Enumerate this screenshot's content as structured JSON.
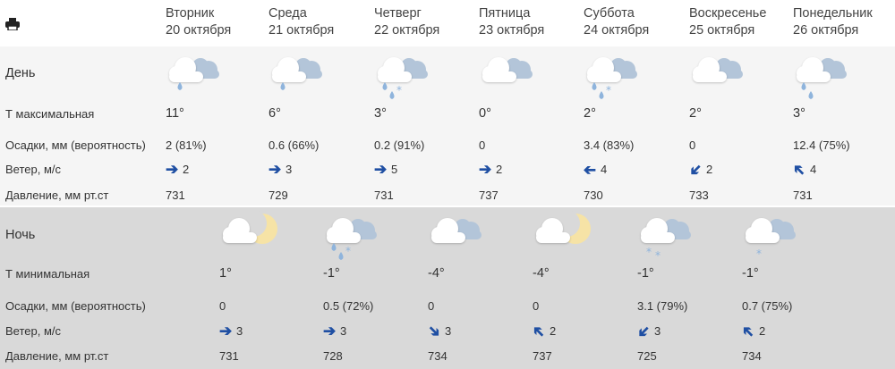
{
  "print_icon": "printer-icon",
  "colors": {
    "wind_arrow": "#1f4fa3",
    "day_bg": "#f5f5f5",
    "night_bg": "#d9d9d9",
    "drop": "#8fb4dc",
    "moon": "#f6e3a6"
  },
  "days": [
    {
      "weekday": "Вторник",
      "date": "20 октября"
    },
    {
      "weekday": "Среда",
      "date": "21 октября"
    },
    {
      "weekday": "Четверг",
      "date": "22 октября"
    },
    {
      "weekday": "Пятница",
      "date": "23 октября"
    },
    {
      "weekday": "Суббота",
      "date": "24 октября"
    },
    {
      "weekday": "Воскресенье",
      "date": "25 октября"
    },
    {
      "weekday": "Понедельник",
      "date": "26 октября"
    }
  ],
  "day": {
    "label": "День",
    "labels": {
      "temp": "Т максимальная",
      "precip": "Осадки, мм (вероятность)",
      "wind": "Ветер, м/с",
      "pressure": "Давление, мм рт.ст"
    },
    "cols": [
      {
        "icon": "cloud-rain",
        "temp": "11°",
        "precip": "2 (81%)",
        "wind_dir": "E",
        "wind": "2",
        "pressure": "731"
      },
      {
        "icon": "cloud-rain",
        "temp": "6°",
        "precip": "0.6 (66%)",
        "wind_dir": "E",
        "wind": "3",
        "pressure": "729"
      },
      {
        "icon": "cloud-rain-snow",
        "temp": "3°",
        "precip": "0.2 (91%)",
        "wind_dir": "E",
        "wind": "5",
        "pressure": "731"
      },
      {
        "icon": "cloudy",
        "temp": "0°",
        "precip": "0",
        "wind_dir": "E",
        "wind": "2",
        "pressure": "737"
      },
      {
        "icon": "cloud-rain-snow",
        "temp": "2°",
        "precip": "3.4 (83%)",
        "wind_dir": "W",
        "wind": "4",
        "pressure": "730"
      },
      {
        "icon": "cloudy",
        "temp": "2°",
        "precip": "0",
        "wind_dir": "SW",
        "wind": "2",
        "pressure": "733"
      },
      {
        "icon": "cloud-rain-small",
        "temp": "3°",
        "precip": "12.4 (75%)",
        "wind_dir": "NW",
        "wind": "4",
        "pressure": "731"
      }
    ]
  },
  "night": {
    "label": "Ночь",
    "labels": {
      "temp": "Т минимальная",
      "precip": "Осадки, мм (вероятность)",
      "wind": "Ветер, м/с",
      "pressure": "Давление, мм рт.ст"
    },
    "cols": [
      {
        "icon": "cloud-moon",
        "temp": "1°",
        "precip": "0",
        "wind_dir": "E",
        "wind": "3",
        "pressure": "731"
      },
      {
        "icon": "cloud-rain-snow",
        "temp": "-1°",
        "precip": "0.5 (72%)",
        "wind_dir": "E",
        "wind": "3",
        "pressure": "728"
      },
      {
        "icon": "cloudy",
        "temp": "-4°",
        "precip": "0",
        "wind_dir": "SE",
        "wind": "3",
        "pressure": "734"
      },
      {
        "icon": "cloud-moon",
        "temp": "-4°",
        "precip": "0",
        "wind_dir": "NW",
        "wind": "2",
        "pressure": "737"
      },
      {
        "icon": "cloud-snow",
        "temp": "-1°",
        "precip": "3.1 (79%)",
        "wind_dir": "SW",
        "wind": "3",
        "pressure": "725"
      },
      {
        "icon": "cloud-snow-light",
        "temp": "-1°",
        "precip": "0.7 (75%)",
        "wind_dir": "NW",
        "wind": "2",
        "pressure": "734"
      }
    ]
  }
}
